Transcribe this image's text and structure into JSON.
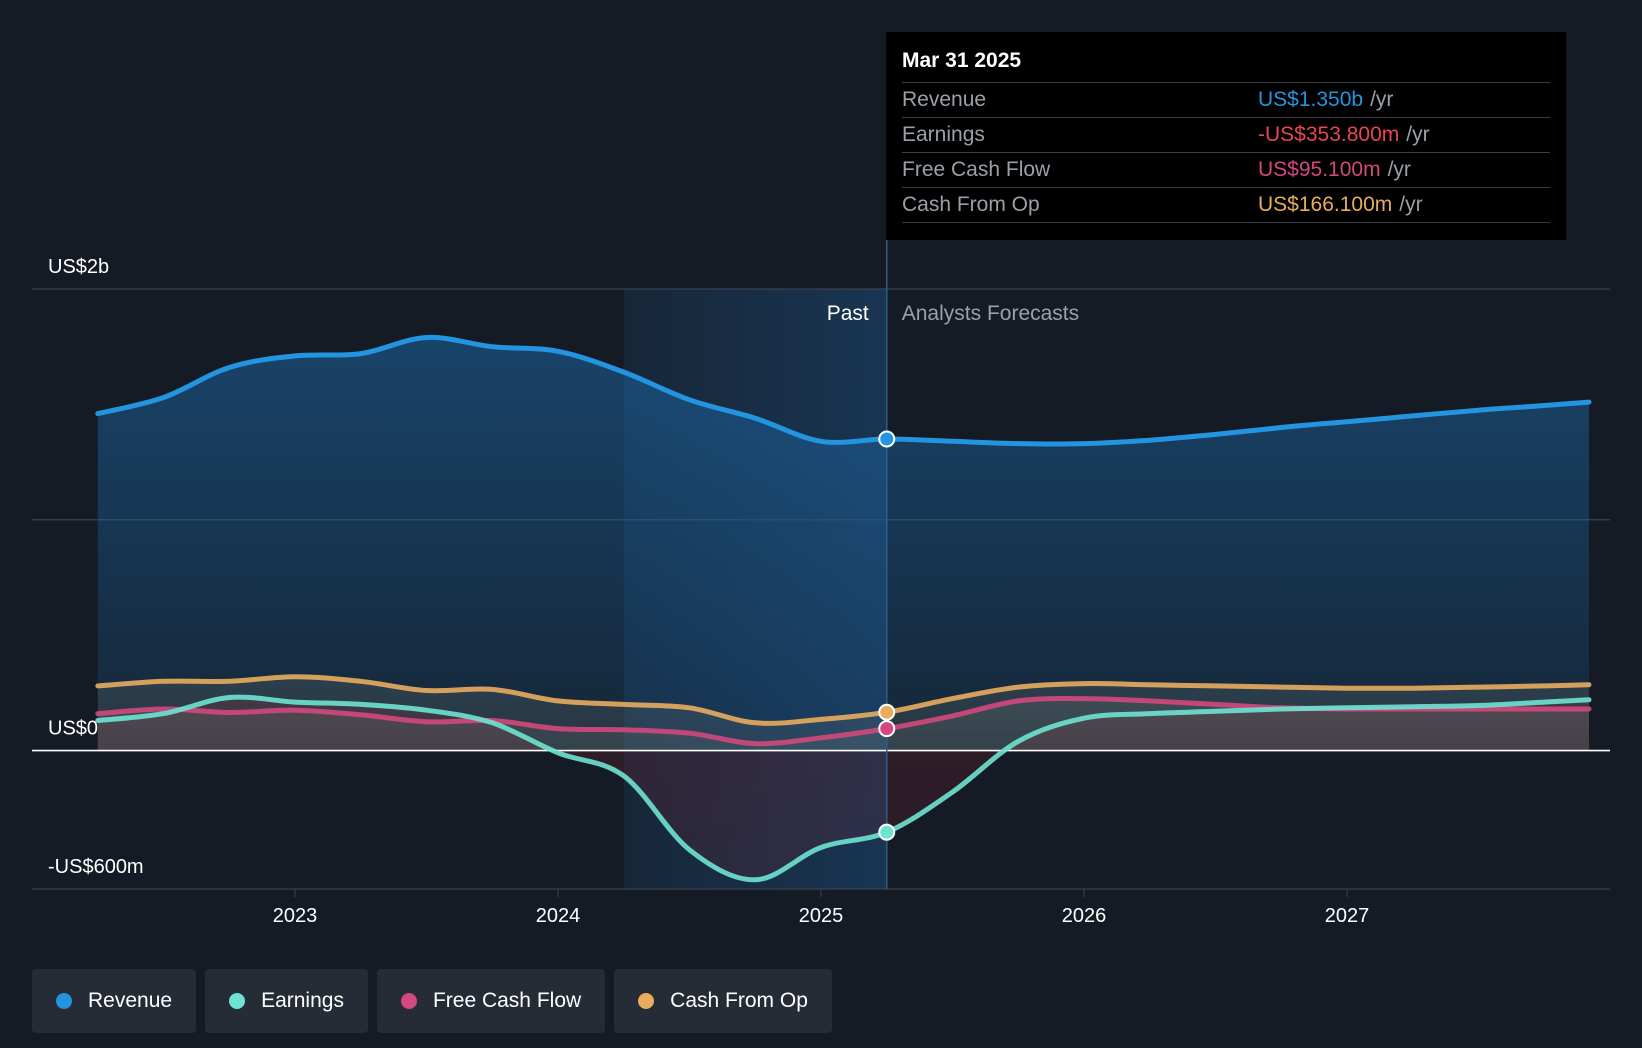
{
  "chart_data": {
    "type": "line",
    "x_range": [
      2022.25,
      2027.92
    ],
    "ylim": [
      -600,
      2000
    ],
    "y_unit": "US$ millions",
    "y_tick_labels": [
      {
        "value": 2000,
        "label": "US$2b"
      },
      {
        "value": 0,
        "label": "US$0"
      },
      {
        "value": -600,
        "label": "-US$600m"
      }
    ],
    "gridline_values": [
      2000,
      1000,
      0,
      -600
    ],
    "x_ticks": [
      {
        "value": 2023,
        "label": "2023"
      },
      {
        "value": 2024,
        "label": "2024"
      },
      {
        "value": 2025,
        "label": "2025"
      },
      {
        "value": 2026,
        "label": "2026"
      },
      {
        "value": 2027,
        "label": "2027"
      }
    ],
    "past_label": "Past",
    "forecast_label": "Analysts Forecasts",
    "highlight_start": 2024.25,
    "divider_x": 2025.25,
    "series": [
      {
        "name": "Revenue",
        "color": "#2394df",
        "points": [
          [
            2022.25,
            1460
          ],
          [
            2022.5,
            1530
          ],
          [
            2022.75,
            1660
          ],
          [
            2023.0,
            1710
          ],
          [
            2023.25,
            1720
          ],
          [
            2023.5,
            1790
          ],
          [
            2023.75,
            1750
          ],
          [
            2024.0,
            1730
          ],
          [
            2024.25,
            1640
          ],
          [
            2024.5,
            1520
          ],
          [
            2024.75,
            1440
          ],
          [
            2025.0,
            1340
          ],
          [
            2025.25,
            1350
          ],
          [
            2025.5,
            1340
          ],
          [
            2025.75,
            1330
          ],
          [
            2026.0,
            1330
          ],
          [
            2026.25,
            1345
          ],
          [
            2026.5,
            1370
          ],
          [
            2026.75,
            1400
          ],
          [
            2027.0,
            1425
          ],
          [
            2027.25,
            1450
          ],
          [
            2027.5,
            1475
          ],
          [
            2027.75,
            1495
          ],
          [
            2027.92,
            1510
          ]
        ]
      },
      {
        "name": "Earnings",
        "color": "#6ee3d1",
        "points": [
          [
            2022.25,
            130
          ],
          [
            2022.5,
            160
          ],
          [
            2022.75,
            230
          ],
          [
            2023.0,
            210
          ],
          [
            2023.25,
            200
          ],
          [
            2023.5,
            175
          ],
          [
            2023.75,
            120
          ],
          [
            2024.0,
            -10
          ],
          [
            2024.25,
            -110
          ],
          [
            2024.5,
            -430
          ],
          [
            2024.75,
            -560
          ],
          [
            2025.0,
            -420
          ],
          [
            2025.25,
            -353.8
          ],
          [
            2025.5,
            -180
          ],
          [
            2025.75,
            40
          ],
          [
            2026.0,
            140
          ],
          [
            2026.25,
            160
          ],
          [
            2026.5,
            170
          ],
          [
            2026.75,
            180
          ],
          [
            2027.0,
            185
          ],
          [
            2027.25,
            190
          ],
          [
            2027.5,
            195
          ],
          [
            2027.75,
            210
          ],
          [
            2027.92,
            220
          ]
        ]
      },
      {
        "name": "Free Cash Flow",
        "color": "#d3487d",
        "points": [
          [
            2022.25,
            160
          ],
          [
            2022.5,
            180
          ],
          [
            2022.75,
            165
          ],
          [
            2023.0,
            175
          ],
          [
            2023.25,
            155
          ],
          [
            2023.5,
            125
          ],
          [
            2023.75,
            130
          ],
          [
            2024.0,
            95
          ],
          [
            2024.25,
            90
          ],
          [
            2024.5,
            75
          ],
          [
            2024.75,
            30
          ],
          [
            2025.0,
            55
          ],
          [
            2025.25,
            95.1
          ],
          [
            2025.5,
            150
          ],
          [
            2025.75,
            215
          ],
          [
            2026.0,
            225
          ],
          [
            2026.25,
            215
          ],
          [
            2026.5,
            200
          ],
          [
            2026.75,
            185
          ],
          [
            2027.0,
            180
          ],
          [
            2027.25,
            180
          ],
          [
            2027.5,
            180
          ],
          [
            2027.75,
            180
          ],
          [
            2027.92,
            180
          ]
        ]
      },
      {
        "name": "Cash From Op",
        "color": "#e8ac5e",
        "points": [
          [
            2022.25,
            280
          ],
          [
            2022.5,
            300
          ],
          [
            2022.75,
            300
          ],
          [
            2023.0,
            320
          ],
          [
            2023.25,
            300
          ],
          [
            2023.5,
            260
          ],
          [
            2023.75,
            265
          ],
          [
            2024.0,
            215
          ],
          [
            2024.25,
            200
          ],
          [
            2024.5,
            185
          ],
          [
            2024.75,
            120
          ],
          [
            2025.0,
            135
          ],
          [
            2025.25,
            166.1
          ],
          [
            2025.5,
            225
          ],
          [
            2025.75,
            275
          ],
          [
            2026.0,
            290
          ],
          [
            2026.25,
            285
          ],
          [
            2026.5,
            280
          ],
          [
            2026.75,
            275
          ],
          [
            2027.0,
            270
          ],
          [
            2027.25,
            270
          ],
          [
            2027.5,
            275
          ],
          [
            2027.75,
            280
          ],
          [
            2027.92,
            285
          ]
        ]
      }
    ],
    "marker_x": 2025.25,
    "markers": [
      {
        "series": "Revenue",
        "value": 1350,
        "color": "#2394df"
      },
      {
        "series": "Cash From Op",
        "value": 166.1,
        "color": "#e8ac5e"
      },
      {
        "series": "Free Cash Flow",
        "value": 95.1,
        "color": "#d3487d"
      },
      {
        "series": "Earnings",
        "value": -353.8,
        "color": "#6ee3d1"
      }
    ]
  },
  "tooltip": {
    "date": "Mar 31 2025",
    "unit": "/yr",
    "rows": [
      {
        "name": "Revenue",
        "value": "US$1.350b",
        "color": "#2394df"
      },
      {
        "name": "Earnings",
        "value": "-US$353.800m",
        "color": "#e64553"
      },
      {
        "name": "Free Cash Flow",
        "value": "US$95.100m",
        "color": "#d3487d"
      },
      {
        "name": "Cash From Op",
        "value": "US$166.100m",
        "color": "#e8ac5e"
      }
    ]
  },
  "legend": [
    {
      "label": "Revenue",
      "color": "#2394df"
    },
    {
      "label": "Earnings",
      "color": "#6ee3d1"
    },
    {
      "label": "Free Cash Flow",
      "color": "#d3487d"
    },
    {
      "label": "Cash From Op",
      "color": "#e8ac5e"
    }
  ]
}
